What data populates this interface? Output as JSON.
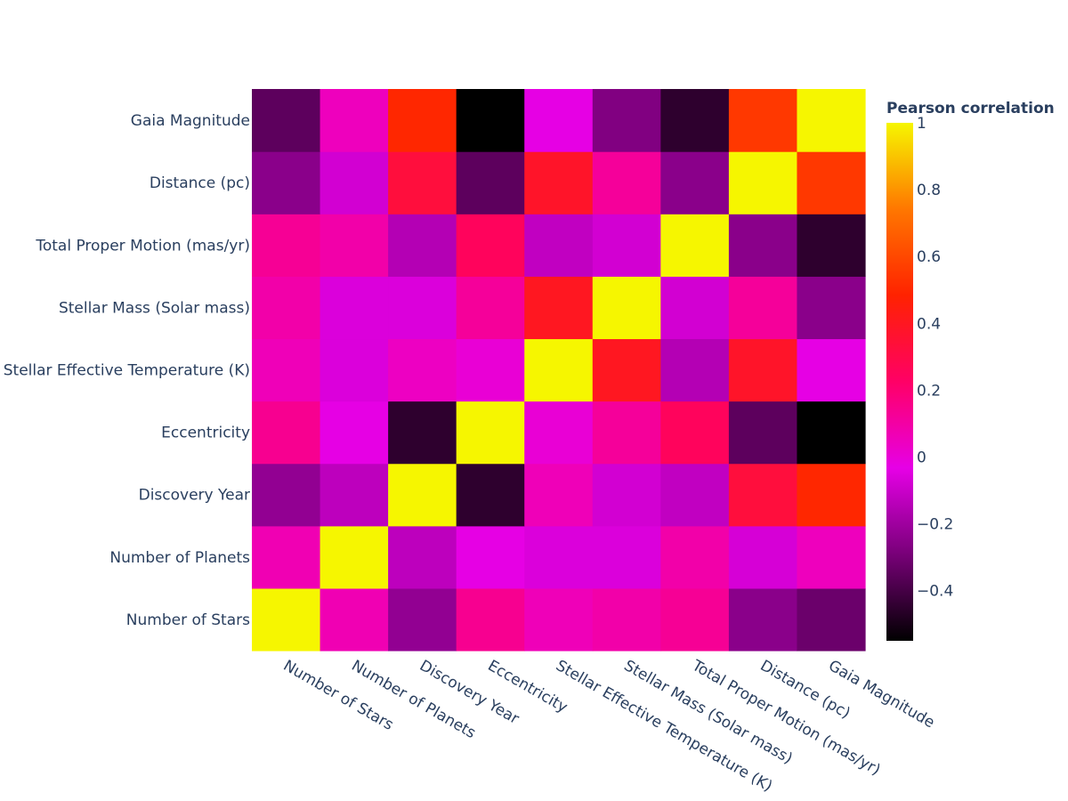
{
  "chart_data": {
    "type": "heatmap",
    "colormap": [
      "#000000",
      "#780078",
      "#e600e6",
      "#ff0066",
      "#ff2200",
      "#ff7700",
      "#f6f600"
    ],
    "x_categories": [
      "Number of Stars",
      "Number of Planets",
      "Discovery Year",
      "Eccentricity",
      "Stellar Effective Temperature (K)",
      "Stellar Mass (Solar mass)",
      "Total Proper Motion (mas/yr)",
      "Distance (pc)",
      "Gaia Magnitude"
    ],
    "y_categories": [
      "Number of Stars",
      "Number of Planets",
      "Discovery Year",
      "Eccentricity",
      "Stellar Effective Temperature (K)",
      "Stellar Mass (Solar mass)",
      "Total Proper Motion (mas/yr)",
      "Distance (pc)",
      "Gaia Magnitude"
    ],
    "z": [
      [
        1.0,
        0.07,
        -0.23,
        0.14,
        0.06,
        0.09,
        0.13,
        -0.25,
        -0.32
      ],
      [
        0.07,
        1.0,
        -0.13,
        -0.03,
        -0.06,
        -0.06,
        0.09,
        -0.07,
        0.05
      ],
      [
        -0.23,
        -0.13,
        1.0,
        -0.45,
        0.06,
        -0.08,
        -0.12,
        0.33,
        0.5
      ],
      [
        0.14,
        -0.03,
        -0.45,
        1.0,
        0.0,
        0.12,
        0.25,
        -0.35,
        -0.55
      ],
      [
        0.06,
        -0.06,
        0.04,
        0.0,
        1.0,
        0.4,
        -0.15,
        0.38,
        -0.03
      ],
      [
        0.09,
        -0.06,
        -0.06,
        0.12,
        0.4,
        1.0,
        -0.08,
        0.12,
        -0.25
      ],
      [
        0.13,
        0.09,
        -0.15,
        0.25,
        -0.12,
        -0.08,
        1.0,
        -0.25,
        -0.45
      ],
      [
        -0.25,
        -0.08,
        0.33,
        -0.35,
        0.38,
        0.12,
        -0.25,
        1.0,
        0.55
      ],
      [
        -0.35,
        0.05,
        0.5,
        -0.55,
        -0.03,
        -0.27,
        -0.45,
        0.55,
        1.0
      ]
    ],
    "zmin": -0.55,
    "zmax": 1.0,
    "colorbar": {
      "title": "Pearson correlation",
      "ticks": [
        1,
        0.8,
        0.6,
        0.4,
        0.2,
        0,
        -0.2,
        -0.4
      ],
      "tick_labels": [
        "1",
        "0.8",
        "0.6",
        "0.4",
        "0.2",
        "0",
        "−0.2",
        "−0.4"
      ]
    }
  }
}
